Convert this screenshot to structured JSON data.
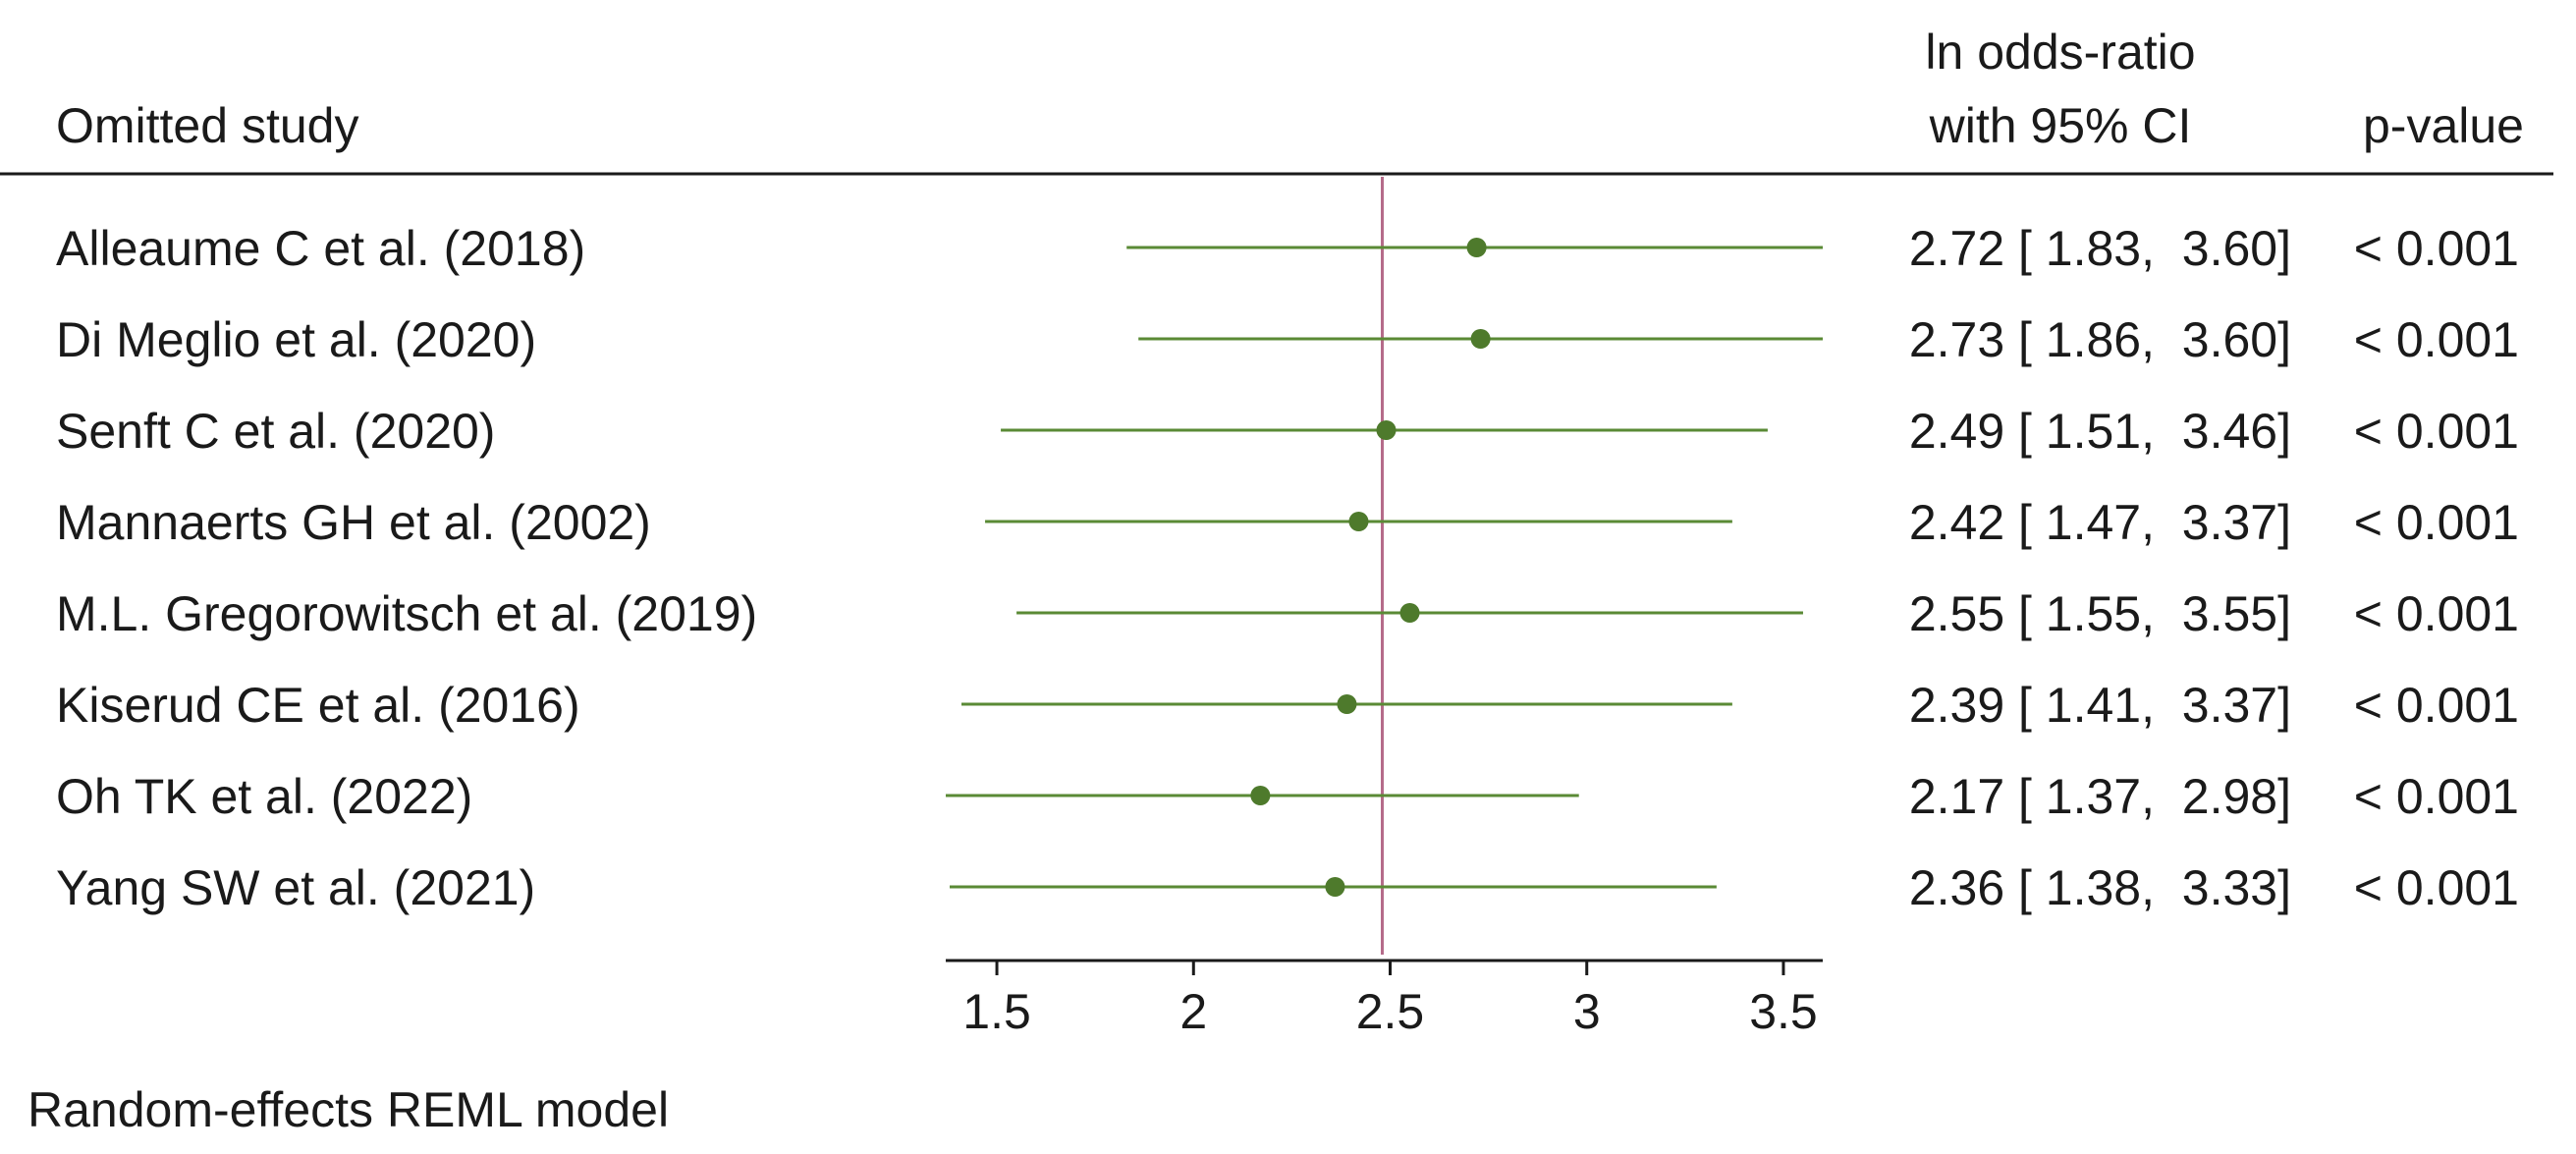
{
  "chart_data": {
    "type": "forest",
    "title": "",
    "headers": {
      "study": "Omitted study",
      "estimate_line1": "ln odds-ratio",
      "estimate_line2": "with 95% CI",
      "pvalue": "p-value"
    },
    "footnote": "Random-effects REML model",
    "xlim": [
      1.37,
      3.6
    ],
    "xticks": [
      1.5,
      2,
      2.5,
      3,
      3.5
    ],
    "xtick_labels": [
      "1.5",
      "2",
      "2.5",
      "3",
      "3.5"
    ],
    "reference_line": 2.48,
    "grid": false,
    "colors": {
      "ci_line": "#5a8a35",
      "point": "#4e7a2c",
      "reference_line": "#b56b8a",
      "text": "#1a1a1a",
      "axis": "#1a1a1a"
    },
    "rows": [
      {
        "study": "Alleaume C et al. (2018)",
        "estimate": 2.72,
        "lower": 1.83,
        "upper": 3.6,
        "ci_text": "2.72 [ 1.83,  3.60]",
        "p_text": "< 0.001"
      },
      {
        "study": "Di Meglio et al. (2020)",
        "estimate": 2.73,
        "lower": 1.86,
        "upper": 3.6,
        "ci_text": "2.73 [ 1.86,  3.60]",
        "p_text": "< 0.001"
      },
      {
        "study": "Senft C et al. (2020)",
        "estimate": 2.49,
        "lower": 1.51,
        "upper": 3.46,
        "ci_text": "2.49 [ 1.51,  3.46]",
        "p_text": "< 0.001"
      },
      {
        "study": "Mannaerts GH et al. (2002)",
        "estimate": 2.42,
        "lower": 1.47,
        "upper": 3.37,
        "ci_text": "2.42 [ 1.47,  3.37]",
        "p_text": "< 0.001"
      },
      {
        "study": "M.L. Gregorowitsch et al. (2019)",
        "estimate": 2.55,
        "lower": 1.55,
        "upper": 3.55,
        "ci_text": "2.55 [ 1.55,  3.55]",
        "p_text": "< 0.001"
      },
      {
        "study": "Kiserud CE et al. (2016)",
        "estimate": 2.39,
        "lower": 1.41,
        "upper": 3.37,
        "ci_text": "2.39 [ 1.41,  3.37]",
        "p_text": "< 0.001"
      },
      {
        "study": "Oh TK et al. (2022)",
        "estimate": 2.17,
        "lower": 1.37,
        "upper": 2.98,
        "ci_text": "2.17 [ 1.37,  2.98]",
        "p_text": "< 0.001"
      },
      {
        "study": "Yang SW et al. (2021)",
        "estimate": 2.36,
        "lower": 1.38,
        "upper": 3.33,
        "ci_text": "2.36 [ 1.38,  3.33]",
        "p_text": "< 0.001"
      }
    ]
  }
}
